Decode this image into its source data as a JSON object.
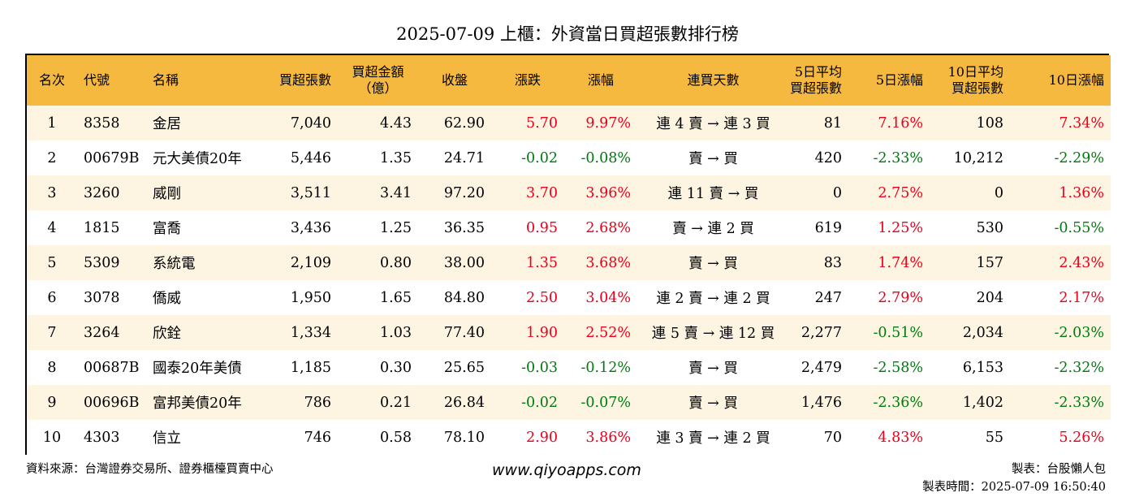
{
  "title": "2025-07-09 上櫃：外資當日買超張數排行榜",
  "headers": {
    "rank": "名次",
    "code": "代號",
    "name": "名稱",
    "net_lots": "買超張數",
    "net_amount_1": "買超金額",
    "net_amount_2": "（億）",
    "close": "收盤",
    "change": "漲跌",
    "pct": "漲幅",
    "streak": "連買天數",
    "avg5_1": "5日平均",
    "avg5_2": "買超張數",
    "pct5": "5日漲幅",
    "avg10_1": "10日平均",
    "avg10_2": "買超張數",
    "pct10": "10日漲幅"
  },
  "colors": {
    "header_bg": "#f6b93f",
    "odd_row_bg": "#fdf5e2",
    "up": "#e8001c",
    "down": "#007a0f"
  },
  "rows": [
    {
      "rank": "1",
      "code": "8358",
      "name": "金居",
      "net_lots": "7,040",
      "net_amount": "4.43",
      "close": "62.90",
      "change": "5.70",
      "change_dir": "up",
      "pct": "9.97%",
      "pct_dir": "up",
      "streak": "連 4 賣 → 連 3 買",
      "avg5": "81",
      "pct5": "7.16%",
      "pct5_dir": "up",
      "avg10": "108",
      "pct10": "7.34%",
      "pct10_dir": "up"
    },
    {
      "rank": "2",
      "code": "00679B",
      "name": "元大美債20年",
      "net_lots": "5,446",
      "net_amount": "1.35",
      "close": "24.71",
      "change": "-0.02",
      "change_dir": "down",
      "pct": "-0.08%",
      "pct_dir": "down",
      "streak": "賣 → 買",
      "avg5": "420",
      "pct5": "-2.33%",
      "pct5_dir": "down",
      "avg10": "10,212",
      "pct10": "-2.29%",
      "pct10_dir": "down"
    },
    {
      "rank": "3",
      "code": "3260",
      "name": "威剛",
      "net_lots": "3,511",
      "net_amount": "3.41",
      "close": "97.20",
      "change": "3.70",
      "change_dir": "up",
      "pct": "3.96%",
      "pct_dir": "up",
      "streak": "連 11 賣 → 買",
      "avg5": "0",
      "pct5": "2.75%",
      "pct5_dir": "up",
      "avg10": "0",
      "pct10": "1.36%",
      "pct10_dir": "up"
    },
    {
      "rank": "4",
      "code": "1815",
      "name": "富喬",
      "net_lots": "3,436",
      "net_amount": "1.25",
      "close": "36.35",
      "change": "0.95",
      "change_dir": "up",
      "pct": "2.68%",
      "pct_dir": "up",
      "streak": "賣 → 連 2 買",
      "avg5": "619",
      "pct5": "1.25%",
      "pct5_dir": "up",
      "avg10": "530",
      "pct10": "-0.55%",
      "pct10_dir": "down"
    },
    {
      "rank": "5",
      "code": "5309",
      "name": "系統電",
      "net_lots": "2,109",
      "net_amount": "0.80",
      "close": "38.00",
      "change": "1.35",
      "change_dir": "up",
      "pct": "3.68%",
      "pct_dir": "up",
      "streak": "賣 → 買",
      "avg5": "83",
      "pct5": "1.74%",
      "pct5_dir": "up",
      "avg10": "157",
      "pct10": "2.43%",
      "pct10_dir": "up"
    },
    {
      "rank": "6",
      "code": "3078",
      "name": "僑威",
      "net_lots": "1,950",
      "net_amount": "1.65",
      "close": "84.80",
      "change": "2.50",
      "change_dir": "up",
      "pct": "3.04%",
      "pct_dir": "up",
      "streak": "連 2 賣 → 連 2 買",
      "avg5": "247",
      "pct5": "2.79%",
      "pct5_dir": "up",
      "avg10": "204",
      "pct10": "2.17%",
      "pct10_dir": "up"
    },
    {
      "rank": "7",
      "code": "3264",
      "name": "欣銓",
      "net_lots": "1,334",
      "net_amount": "1.03",
      "close": "77.40",
      "change": "1.90",
      "change_dir": "up",
      "pct": "2.52%",
      "pct_dir": "up",
      "streak": "連 5 賣 → 連 12 買",
      "avg5": "2,277",
      "pct5": "-0.51%",
      "pct5_dir": "down",
      "avg10": "2,034",
      "pct10": "-2.03%",
      "pct10_dir": "down"
    },
    {
      "rank": "8",
      "code": "00687B",
      "name": "國泰20年美債",
      "net_lots": "1,185",
      "net_amount": "0.30",
      "close": "25.65",
      "change": "-0.03",
      "change_dir": "down",
      "pct": "-0.12%",
      "pct_dir": "down",
      "streak": "賣 → 買",
      "avg5": "2,479",
      "pct5": "-2.58%",
      "pct5_dir": "down",
      "avg10": "6,153",
      "pct10": "-2.32%",
      "pct10_dir": "down"
    },
    {
      "rank": "9",
      "code": "00696B",
      "name": "富邦美債20年",
      "net_lots": "786",
      "net_amount": "0.21",
      "close": "26.84",
      "change": "-0.02",
      "change_dir": "down",
      "pct": "-0.07%",
      "pct_dir": "down",
      "streak": "賣 → 買",
      "avg5": "1,476",
      "pct5": "-2.36%",
      "pct5_dir": "down",
      "avg10": "1,402",
      "pct10": "-2.33%",
      "pct10_dir": "down"
    },
    {
      "rank": "10",
      "code": "4303",
      "name": "信立",
      "net_lots": "746",
      "net_amount": "0.58",
      "close": "78.10",
      "change": "2.90",
      "change_dir": "up",
      "pct": "3.86%",
      "pct_dir": "up",
      "streak": "連 3 賣 → 連 2 買",
      "avg5": "70",
      "pct5": "4.83%",
      "pct5_dir": "up",
      "avg10": "55",
      "pct10": "5.26%",
      "pct10_dir": "up"
    }
  ],
  "footer": {
    "source": "資料來源：台灣證券交易所、證券櫃檯買賣中心",
    "website": "www.qiyoapps.com",
    "author": "製表：台股懶人包",
    "made_time": "製表時間：2025-07-09 16:50:40"
  }
}
